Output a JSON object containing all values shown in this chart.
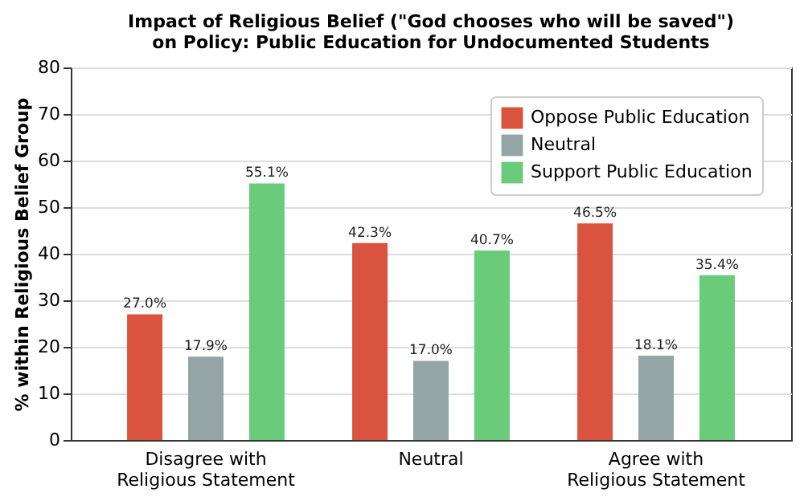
{
  "chart_data": {
    "type": "bar",
    "title": [
      "Impact of Religious Belief (\"God chooses who will be saved\")",
      "on Policy: Public Education for Undocumented Students"
    ],
    "ylabel": "% within Religious Belief Group",
    "categories": [
      "Disagree with\nReligious Statement",
      "Neutral",
      "Agree with\nReligious Statement"
    ],
    "series": [
      {
        "name": "Oppose Public Education",
        "color": "#d9533f",
        "values": [
          27.0,
          42.3,
          46.5
        ],
        "value_labels": [
          "27.0%",
          "42.3%",
          "46.5%"
        ]
      },
      {
        "name": "Neutral",
        "color": "#95a5a6",
        "values": [
          17.9,
          17.0,
          18.1
        ],
        "value_labels": [
          "17.9%",
          "17.0%",
          "18.1%"
        ]
      },
      {
        "name": "Support Public Education",
        "color": "#6acc7a",
        "values": [
          55.1,
          40.7,
          35.4
        ],
        "value_labels": [
          "55.1%",
          "40.7%",
          "35.4%"
        ]
      }
    ],
    "ylim": [
      0,
      80
    ],
    "yticks": [
      0,
      10,
      20,
      30,
      40,
      50,
      60,
      70,
      80
    ],
    "grid": "y",
    "legend": "top right"
  }
}
